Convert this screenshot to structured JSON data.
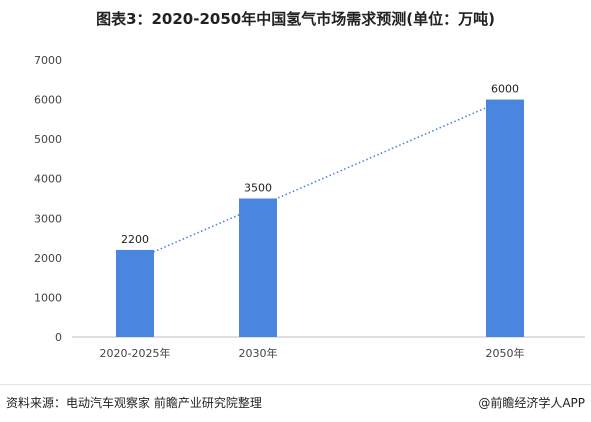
{
  "title": "图表3：2020-2050年中国氢气市场需求预测(单位：万吨)",
  "footer": {
    "source": "资料来源：电动汽车观察家 前瞻产业研究院整理",
    "brand": "@前瞻经济学人APP"
  },
  "colors": {
    "bar": "#4a86e0",
    "trendline": "#4a86e0",
    "gridline": "#e0e0e0",
    "axis": "#bfbfbf"
  },
  "chart_data": {
    "type": "bar",
    "categories": [
      "2020-2025年",
      "2030年",
      "2050年"
    ],
    "values": [
      2200,
      3500,
      6000
    ],
    "data_labels": [
      "2200",
      "3500",
      "6000"
    ],
    "y_ticks": [
      "0",
      "1000",
      "2000",
      "3000",
      "4000",
      "5000",
      "6000",
      "7000"
    ],
    "ylim": [
      0,
      7000
    ],
    "trendline": "dotted-linear",
    "grid": false,
    "xlabel": "",
    "ylabel": ""
  }
}
